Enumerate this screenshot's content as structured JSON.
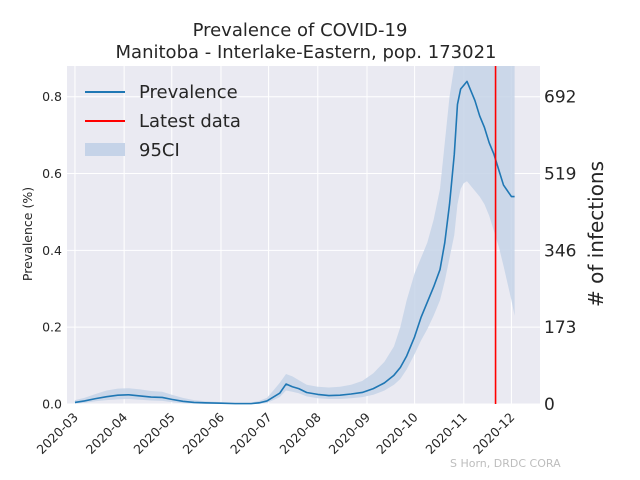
{
  "chart_data": {
    "type": "line",
    "title": "Prevalence of COVID-19",
    "subtitle": "Manitoba - Interlake-Eastern, pop. 173021",
    "ylabel": "Prevalence (%)",
    "ylabel_right": "# of infections",
    "credit": "S Horn, DRDC CORA",
    "xlim": [
      "2020-02-25",
      "2020-12-19"
    ],
    "ylim": [
      0,
      0.88
    ],
    "x_ticks": [
      "2020-03",
      "2020-04",
      "2020-05",
      "2020-06",
      "2020-07",
      "2020-08",
      "2020-09",
      "2020-10",
      "2020-11",
      "2020-12"
    ],
    "y_ticks": [
      "0.0",
      "0.2",
      "0.4",
      "0.6",
      "0.8"
    ],
    "y_ticks_right": [
      "0",
      "173",
      "346",
      "519",
      "692"
    ],
    "grid": true,
    "legend_position": "top-left",
    "legend": [
      "Prevalence",
      "Latest data",
      "95CI"
    ],
    "colors": {
      "prevalence": "#1f77b4",
      "latest": "#ff0000",
      "ci": "#c5d3e8",
      "background": "#eaeaf2",
      "grid": "#ffffff"
    },
    "latest_data_date": "2020-11-21",
    "series": [
      {
        "name": "Prevalence",
        "x": [
          "2020-03-01",
          "2020-03-07",
          "2020-03-14",
          "2020-03-21",
          "2020-03-28",
          "2020-04-04",
          "2020-04-11",
          "2020-04-18",
          "2020-04-25",
          "2020-05-01",
          "2020-05-08",
          "2020-05-15",
          "2020-05-22",
          "2020-06-01",
          "2020-06-10",
          "2020-06-20",
          "2020-06-25",
          "2020-06-30",
          "2020-07-04",
          "2020-07-08",
          "2020-07-12",
          "2020-07-16",
          "2020-07-20",
          "2020-07-25",
          "2020-08-01",
          "2020-08-08",
          "2020-08-15",
          "2020-08-22",
          "2020-08-29",
          "2020-09-05",
          "2020-09-12",
          "2020-09-18",
          "2020-09-22",
          "2020-09-26",
          "2020-10-01",
          "2020-10-05",
          "2020-10-09",
          "2020-10-13",
          "2020-10-17",
          "2020-10-20",
          "2020-10-23",
          "2020-10-26",
          "2020-10-28",
          "2020-10-30",
          "2020-11-01",
          "2020-11-03",
          "2020-11-05",
          "2020-11-08",
          "2020-11-11",
          "2020-11-14",
          "2020-11-17",
          "2020-11-20",
          "2020-11-23",
          "2020-11-26",
          "2020-12-01",
          "2020-12-03"
        ],
        "values": [
          0.004,
          0.008,
          0.014,
          0.019,
          0.023,
          0.024,
          0.021,
          0.018,
          0.017,
          0.012,
          0.007,
          0.004,
          0.003,
          0.002,
          0.001,
          0.001,
          0.003,
          0.008,
          0.018,
          0.028,
          0.052,
          0.045,
          0.04,
          0.03,
          0.025,
          0.022,
          0.023,
          0.026,
          0.03,
          0.04,
          0.055,
          0.075,
          0.095,
          0.125,
          0.175,
          0.225,
          0.265,
          0.305,
          0.35,
          0.42,
          0.52,
          0.65,
          0.78,
          0.82,
          0.83,
          0.84,
          0.82,
          0.79,
          0.75,
          0.72,
          0.68,
          0.65,
          0.61,
          0.57,
          0.54,
          0.54
        ]
      },
      {
        "name": "95CI",
        "x": [
          "2020-03-01",
          "2020-03-07",
          "2020-03-14",
          "2020-03-21",
          "2020-03-28",
          "2020-04-04",
          "2020-04-11",
          "2020-04-18",
          "2020-04-25",
          "2020-05-01",
          "2020-05-08",
          "2020-05-15",
          "2020-05-22",
          "2020-06-01",
          "2020-06-10",
          "2020-06-20",
          "2020-06-25",
          "2020-06-30",
          "2020-07-04",
          "2020-07-08",
          "2020-07-12",
          "2020-07-16",
          "2020-07-20",
          "2020-07-25",
          "2020-08-01",
          "2020-08-08",
          "2020-08-15",
          "2020-08-22",
          "2020-08-29",
          "2020-09-05",
          "2020-09-12",
          "2020-09-18",
          "2020-09-22",
          "2020-09-26",
          "2020-10-01",
          "2020-10-05",
          "2020-10-09",
          "2020-10-13",
          "2020-10-17",
          "2020-10-20",
          "2020-10-23",
          "2020-10-26",
          "2020-10-28",
          "2020-10-30",
          "2020-11-01",
          "2020-11-03",
          "2020-11-05",
          "2020-11-08",
          "2020-11-11",
          "2020-11-14",
          "2020-11-17",
          "2020-11-20",
          "2020-11-23",
          "2020-11-26",
          "2020-12-01",
          "2020-12-03"
        ],
        "lower": [
          0.001,
          0.003,
          0.007,
          0.01,
          0.012,
          0.013,
          0.011,
          0.009,
          0.008,
          0.005,
          0.002,
          0.001,
          0.0,
          0.0,
          0.0,
          0.0,
          0.0,
          0.003,
          0.01,
          0.018,
          0.035,
          0.032,
          0.028,
          0.02,
          0.015,
          0.013,
          0.013,
          0.015,
          0.018,
          0.024,
          0.035,
          0.05,
          0.065,
          0.09,
          0.13,
          0.165,
          0.195,
          0.23,
          0.27,
          0.32,
          0.38,
          0.44,
          0.52,
          0.56,
          0.575,
          0.58,
          0.57,
          0.555,
          0.54,
          0.52,
          0.49,
          0.45,
          0.41,
          0.36,
          0.27,
          0.23
        ],
        "upper": [
          0.01,
          0.016,
          0.026,
          0.035,
          0.04,
          0.041,
          0.038,
          0.034,
          0.032,
          0.024,
          0.016,
          0.01,
          0.007,
          0.005,
          0.004,
          0.004,
          0.008,
          0.016,
          0.035,
          0.055,
          0.078,
          0.072,
          0.062,
          0.05,
          0.045,
          0.043,
          0.045,
          0.05,
          0.06,
          0.08,
          0.11,
          0.15,
          0.2,
          0.27,
          0.34,
          0.38,
          0.42,
          0.48,
          0.56,
          0.68,
          0.8,
          0.88,
          0.88,
          0.88,
          0.88,
          0.88,
          0.88,
          0.88,
          0.88,
          0.88,
          0.88,
          0.88,
          0.88,
          0.88,
          0.88,
          0.88
        ]
      }
    ]
  }
}
